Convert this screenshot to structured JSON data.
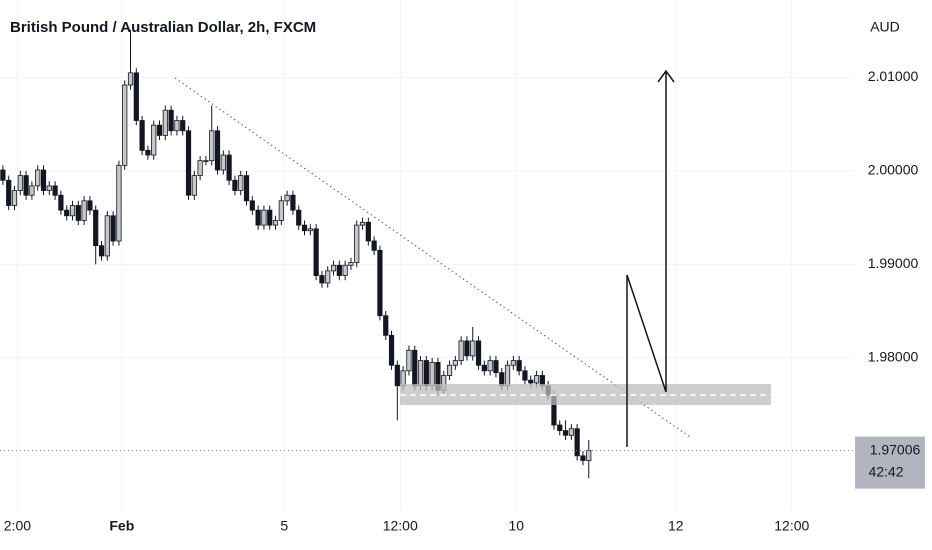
{
  "chart_data": {
    "type": "candlestick",
    "title": "British Pound / Australian Dollar, 2h, FXCM",
    "currency": "AUD",
    "countdown": "42:42",
    "up_color": "#c8c8c8",
    "down_color": "#131722",
    "grid": true,
    "xlim": [
      -0.5,
      146.9
    ],
    "xticks": [
      {
        "value": 2.5,
        "label": "2:00"
      },
      {
        "value": 20.5,
        "label": "Feb"
      },
      {
        "value": 48.5,
        "label": "5"
      },
      {
        "value": 68.5,
        "label": "12:00"
      },
      {
        "value": 88.5,
        "label": "10"
      },
      {
        "value": 116,
        "label": "12"
      },
      {
        "value": 136,
        "label": "12:00"
      }
    ],
    "ylim": [
      1.9637,
      2.0183
    ],
    "yticks": [
      {
        "value": 1.98,
        "label": "1.98000"
      },
      {
        "value": 1.99,
        "label": "1.99000"
      },
      {
        "value": 2.0,
        "label": "2.00000"
      },
      {
        "value": 2.01,
        "label": "2.01000"
      }
    ],
    "open": [
      2.0001,
      1.999,
      1.9963,
      1.9979,
      1.9995,
      1.9974,
      1.9984,
      2.0001,
      1.9979,
      1.9984,
      1.9974,
      1.9958,
      1.9952,
      1.9963,
      1.9947,
      1.9968,
      1.9958,
      1.992,
      1.9909,
      1.9952,
      1.9925,
      2.0006,
      2.0092,
      2.0105,
      2.0054,
      2.0022,
      2.0017,
      2.0049,
      2.0038,
      2.0065,
      2.0043,
      2.0054,
      2.0043,
      1.9974,
      1.9995,
      2.0011,
      2.0011,
      2.0043,
      2.0001,
      2.0017,
      1.999,
      1.9979,
      1.9995,
      1.9968,
      1.9958,
      1.9942,
      1.9958,
      1.9942,
      1.9947,
      1.9968,
      1.9974,
      1.9958,
      1.9942,
      1.9936,
      1.9938,
      1.9888,
      1.988,
      1.9893,
      1.9899,
      1.9888,
      1.9899,
      1.9902,
      1.9942,
      1.9945,
      1.9925,
      1.9915,
      1.9845,
      1.9824,
      1.9792,
      1.977,
      1.9786,
      1.9808,
      1.977,
      1.9797,
      1.977,
      1.9795,
      1.9765,
      1.9781,
      1.9792,
      1.9797,
      1.9818,
      1.9802,
      1.9818,
      1.9792,
      1.9786,
      1.9797,
      1.9784,
      1.977,
      1.9792,
      1.9797,
      1.9786,
      1.9776,
      1.9773,
      1.9781,
      1.977,
      1.976,
      1.9728,
      1.9722,
      1.9717,
      1.9724,
      1.9695,
      1.969
    ],
    "high": [
      2.0006,
      1.9995,
      1.9984,
      2.0,
      2.0,
      1.9989,
      2.0006,
      2.0006,
      1.9989,
      1.9989,
      1.9979,
      1.9963,
      1.9968,
      1.9968,
      1.9973,
      1.9973,
      1.9963,
      1.9925,
      1.9957,
      1.9957,
      2.0011,
      2.0097,
      2.0151,
      2.011,
      2.0059,
      2.0027,
      2.0054,
      2.0054,
      2.007,
      2.007,
      2.0059,
      2.0059,
      2.0048,
      2.0,
      2.0016,
      2.0016,
      2.007,
      2.0048,
      2.0022,
      2.0022,
      1.9995,
      2.0,
      2.0,
      1.9973,
      1.9963,
      1.9963,
      1.9963,
      1.9952,
      1.9973,
      1.9979,
      1.9979,
      1.9963,
      1.9947,
      1.9943,
      1.9943,
      1.9893,
      1.9898,
      1.9904,
      1.9904,
      1.9904,
      1.9907,
      1.9947,
      1.995,
      1.995,
      1.993,
      1.992,
      1.985,
      1.9829,
      1.9797,
      1.9791,
      1.9813,
      1.9813,
      1.9802,
      1.9802,
      1.98,
      1.98,
      1.9786,
      1.9797,
      1.9802,
      1.9823,
      1.9823,
      1.9833,
      1.9823,
      1.9797,
      1.9802,
      1.9802,
      1.9789,
      1.9797,
      1.9802,
      1.9802,
      1.9791,
      1.9781,
      1.9786,
      1.9786,
      1.9775,
      1.9765,
      1.9733,
      1.9733,
      1.9729,
      1.9729,
      1.97,
      1.9712
    ],
    "low": [
      1.9985,
      1.9958,
      1.9958,
      1.9974,
      1.9969,
      1.9969,
      1.9979,
      1.9974,
      1.9974,
      1.9969,
      1.9953,
      1.9947,
      1.9947,
      1.9942,
      1.9942,
      1.9953,
      1.99,
      1.9904,
      1.9904,
      1.992,
      1.992,
      2.0001,
      2.0087,
      2.0049,
      2.0017,
      2.0012,
      2.0012,
      2.0033,
      2.0033,
      2.0038,
      2.0038,
      2.0038,
      1.9969,
      1.9969,
      1.999,
      2.0006,
      2.0006,
      1.9996,
      1.9996,
      1.9985,
      1.9974,
      1.9974,
      1.9963,
      1.9953,
      1.9937,
      1.9937,
      1.9937,
      1.9937,
      1.9942,
      1.9963,
      1.9953,
      1.9937,
      1.9931,
      1.9931,
      1.9883,
      1.9875,
      1.9875,
      1.9888,
      1.9883,
      1.9883,
      1.9894,
      1.9897,
      1.9937,
      1.992,
      1.991,
      1.984,
      1.9819,
      1.9787,
      1.9733,
      1.9765,
      1.9781,
      1.9765,
      1.9765,
      1.9765,
      1.9765,
      1.976,
      1.976,
      1.9776,
      1.9787,
      1.9792,
      1.9797,
      1.9797,
      1.9787,
      1.9781,
      1.9781,
      1.9779,
      1.9765,
      1.9765,
      1.9787,
      1.9781,
      1.9771,
      1.9768,
      1.9768,
      1.9765,
      1.9755,
      1.9723,
      1.9717,
      1.9712,
      1.9712,
      1.969,
      1.9685,
      1.9671
    ],
    "close": [
      1.999,
      1.9963,
      1.9979,
      1.9995,
      1.9974,
      1.9984,
      2.0001,
      1.9979,
      1.9984,
      1.9974,
      1.9958,
      1.9952,
      1.9963,
      1.9947,
      1.9968,
      1.9958,
      1.992,
      1.9909,
      1.9952,
      1.9925,
      2.0006,
      2.0092,
      2.0105,
      2.0054,
      2.0022,
      2.0017,
      2.0049,
      2.0038,
      2.0065,
      2.0043,
      2.0054,
      2.0043,
      1.9974,
      1.9995,
      2.0011,
      2.0011,
      2.0043,
      2.0001,
      2.0017,
      1.999,
      1.9979,
      1.9995,
      1.9968,
      1.9958,
      1.9942,
      1.9958,
      1.9942,
      1.9947,
      1.9968,
      1.9974,
      1.9958,
      1.9942,
      1.9936,
      1.9938,
      1.9888,
      1.988,
      1.9893,
      1.9899,
      1.9888,
      1.9899,
      1.9902,
      1.9942,
      1.9945,
      1.9925,
      1.9915,
      1.9845,
      1.9824,
      1.9792,
      1.977,
      1.9786,
      1.9808,
      1.977,
      1.9797,
      1.977,
      1.9795,
      1.9765,
      1.9781,
      1.9792,
      1.9797,
      1.9818,
      1.9802,
      1.9818,
      1.9792,
      1.9786,
      1.9797,
      1.9784,
      1.977,
      1.9792,
      1.9797,
      1.9786,
      1.9776,
      1.9773,
      1.9781,
      1.977,
      1.976,
      1.9728,
      1.9722,
      1.9717,
      1.9724,
      1.9695,
      1.969,
      1.97006
    ]
  }
}
